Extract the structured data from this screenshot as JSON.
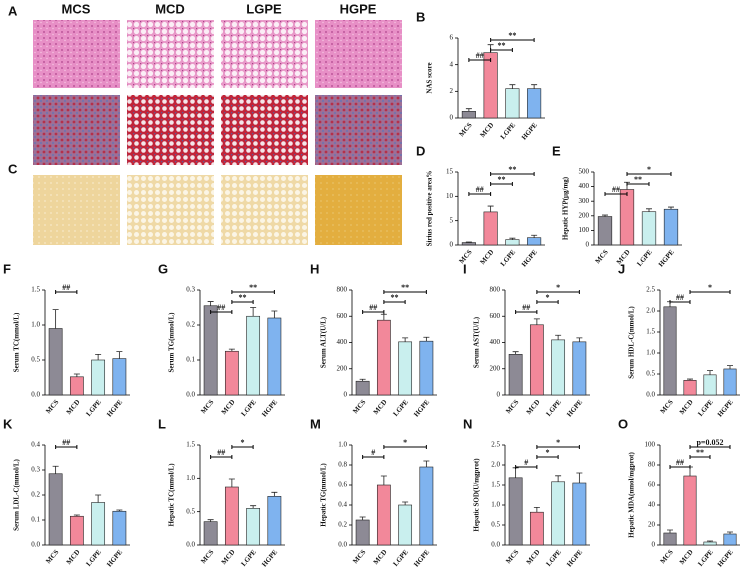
{
  "figure": {
    "panel_a": {
      "letter": "A",
      "headers": [
        "MCS",
        "MCD",
        "LGPE",
        "HGPE"
      ]
    },
    "panel_c": {
      "letter": "C"
    }
  },
  "chart_data": [
    {
      "type": "bar",
      "label": "B",
      "ylabel": "NAS score",
      "categories": [
        "MCS",
        "MCD",
        "LGPE",
        "HGPE"
      ],
      "values": [
        0.5,
        4.9,
        2.2,
        2.2
      ],
      "errors": [
        0.2,
        0.6,
        0.3,
        0.3
      ],
      "colors": [
        "#8d8a95",
        "#f2889a",
        "#c9efee",
        "#7fb3ef"
      ],
      "ylim": [
        0,
        6
      ],
      "yticks": [
        0,
        2,
        4,
        6
      ],
      "annotations": [
        {
          "text": "##",
          "from": 0,
          "to": 1
        },
        {
          "text": "**",
          "from": 1,
          "to": 2
        },
        {
          "text": "**",
          "from": 1,
          "to": 3
        }
      ]
    },
    {
      "type": "bar",
      "label": "D",
      "ylabel": "Sirius red positive area%",
      "categories": [
        "MCS",
        "MCD",
        "LGPE",
        "HGPE"
      ],
      "values": [
        0.5,
        6.8,
        1.1,
        1.5
      ],
      "errors": [
        0.1,
        1.2,
        0.3,
        0.5
      ],
      "colors": [
        "#8d8a95",
        "#f2889a",
        "#c9efee",
        "#7fb3ef"
      ],
      "ylim": [
        0,
        15
      ],
      "yticks": [
        0,
        5,
        10,
        15
      ],
      "annotations": [
        {
          "text": "##",
          "from": 0,
          "to": 1
        },
        {
          "text": "**",
          "from": 1,
          "to": 2
        },
        {
          "text": "**",
          "from": 1,
          "to": 3
        }
      ]
    },
    {
      "type": "bar",
      "label": "E",
      "ylabel": "Hepatic HYP(μg/mg)",
      "categories": [
        "MCS",
        "MCD",
        "LGPE",
        "HGPE"
      ],
      "values": [
        195,
        380,
        228,
        245
      ],
      "errors": [
        10,
        50,
        20,
        15
      ],
      "colors": [
        "#8d8a95",
        "#f2889a",
        "#c9efee",
        "#7fb3ef"
      ],
      "ylim": [
        0,
        500
      ],
      "yticks": [
        0,
        100,
        200,
        300,
        400,
        500
      ],
      "annotations": [
        {
          "text": "##",
          "from": 0,
          "to": 1
        },
        {
          "text": "**",
          "from": 1,
          "to": 2
        },
        {
          "text": "*",
          "from": 1,
          "to": 3
        }
      ]
    },
    {
      "type": "bar",
      "label": "F",
      "ylabel": "Serum TC(mmol/L)",
      "categories": [
        "MCS",
        "MCD",
        "LGPE",
        "HGPE"
      ],
      "values": [
        0.95,
        0.26,
        0.5,
        0.52
      ],
      "errors": [
        0.27,
        0.04,
        0.08,
        0.1
      ],
      "colors": [
        "#8d8a95",
        "#f2889a",
        "#c9efee",
        "#7fb3ef"
      ],
      "ylim": [
        0,
        1.5
      ],
      "yticks": [
        {
          "value": 0,
          "label": "0.0"
        },
        0.5,
        {
          "value": 1,
          "label": "1.0"
        },
        1.5
      ],
      "annotations": [
        {
          "text": "##",
          "from": 0,
          "to": 1
        }
      ]
    },
    {
      "type": "bar",
      "label": "G",
      "ylabel": "Serum TG(mmol/L)",
      "categories": [
        "MCS",
        "MCD",
        "LGPE",
        "HGPE"
      ],
      "values": [
        0.255,
        0.125,
        0.225,
        0.22
      ],
      "errors": [
        0.012,
        0.006,
        0.025,
        0.02
      ],
      "colors": [
        "#8d8a95",
        "#f2889a",
        "#c9efee",
        "#7fb3ef"
      ],
      "ylim": [
        0,
        0.3
      ],
      "yticks": [
        {
          "value": 0,
          "label": "0.0"
        },
        0.1,
        0.2,
        0.3
      ],
      "annotations": [
        {
          "text": "##",
          "from": 0,
          "to": 1
        },
        {
          "text": "**",
          "from": 1,
          "to": 2
        },
        {
          "text": "**",
          "from": 1,
          "to": 3
        }
      ]
    },
    {
      "type": "bar",
      "label": "H",
      "ylabel": "Serum ALT(U/L)",
      "categories": [
        "MCS",
        "MCD",
        "LGPE",
        "HGPE"
      ],
      "values": [
        105,
        570,
        405,
        410
      ],
      "errors": [
        15,
        45,
        30,
        30
      ],
      "colors": [
        "#8d8a95",
        "#f2889a",
        "#c9efee",
        "#7fb3ef"
      ],
      "ylim": [
        0,
        800
      ],
      "yticks": [
        0,
        200,
        400,
        600,
        800
      ],
      "annotations": [
        {
          "text": "##",
          "from": 0,
          "to": 1
        },
        {
          "text": "**",
          "from": 1,
          "to": 2
        },
        {
          "text": "**",
          "from": 1,
          "to": 3
        }
      ]
    },
    {
      "type": "bar",
      "label": "I",
      "ylabel": "Serum AST(U/L)",
      "categories": [
        "MCS",
        "MCD",
        "LGPE",
        "HGPE"
      ],
      "values": [
        310,
        535,
        420,
        405
      ],
      "errors": [
        20,
        45,
        35,
        30
      ],
      "colors": [
        "#8d8a95",
        "#f2889a",
        "#c9efee",
        "#7fb3ef"
      ],
      "ylim": [
        0,
        800
      ],
      "yticks": [
        0,
        200,
        400,
        600,
        800
      ],
      "annotations": [
        {
          "text": "##",
          "from": 0,
          "to": 1
        },
        {
          "text": "*",
          "from": 1,
          "to": 2
        },
        {
          "text": "*",
          "from": 1,
          "to": 3
        }
      ]
    },
    {
      "type": "bar",
      "label": "J",
      "ylabel": "Serum HDL-C(mmol/L)",
      "categories": [
        "MCS",
        "MCD",
        "LGPE",
        "HGPE"
      ],
      "values": [
        2.1,
        0.35,
        0.48,
        0.62
      ],
      "errors": [
        0.12,
        0.03,
        0.1,
        0.08
      ],
      "colors": [
        "#8d8a95",
        "#f2889a",
        "#c9efee",
        "#7fb3ef"
      ],
      "ylim": [
        0,
        2.5
      ],
      "yticks": [
        {
          "value": 0,
          "label": "0.0"
        },
        0.5,
        {
          "value": 1,
          "label": "1.0"
        },
        1.5,
        {
          "value": 2,
          "label": "2.0"
        },
        2.5
      ],
      "annotations": [
        {
          "text": "##",
          "from": 0,
          "to": 1
        },
        {
          "text": "*",
          "from": 1,
          "to": 3
        }
      ]
    },
    {
      "type": "bar",
      "label": "K",
      "ylabel": "Serum LDL-C(mmol/L)",
      "categories": [
        "MCS",
        "MCD",
        "LGPE",
        "HGPE"
      ],
      "values": [
        0.285,
        0.115,
        0.17,
        0.135
      ],
      "errors": [
        0.03,
        0.005,
        0.03,
        0.005
      ],
      "colors": [
        "#8d8a95",
        "#f2889a",
        "#c9efee",
        "#7fb3ef"
      ],
      "ylim": [
        0,
        0.4
      ],
      "yticks": [
        {
          "value": 0,
          "label": "0.0"
        },
        0.1,
        0.2,
        0.3,
        0.4
      ],
      "annotations": [
        {
          "text": "##",
          "from": 0,
          "to": 1
        }
      ]
    },
    {
      "type": "bar",
      "label": "L",
      "ylabel": "Hepatic TC(mmol/L)",
      "categories": [
        "MCS",
        "MCD",
        "LGPE",
        "HGPE"
      ],
      "values": [
        0.35,
        0.87,
        0.55,
        0.73
      ],
      "errors": [
        0.03,
        0.12,
        0.04,
        0.06
      ],
      "colors": [
        "#8d8a95",
        "#f2889a",
        "#c9efee",
        "#7fb3ef"
      ],
      "ylim": [
        0,
        1.5
      ],
      "yticks": [
        {
          "value": 0,
          "label": "0.0"
        },
        0.5,
        {
          "value": 1,
          "label": "1.0"
        },
        1.5
      ],
      "annotations": [
        {
          "text": "##",
          "from": 0,
          "to": 1
        },
        {
          "text": "*",
          "from": 1,
          "to": 2
        }
      ]
    },
    {
      "type": "bar",
      "label": "M",
      "ylabel": "Hepatic TG(mmol/L)",
      "categories": [
        "MCS",
        "MCD",
        "LGPE",
        "HGPE"
      ],
      "values": [
        0.25,
        0.6,
        0.4,
        0.78
      ],
      "errors": [
        0.03,
        0.09,
        0.03,
        0.06
      ],
      "colors": [
        "#8d8a95",
        "#f2889a",
        "#c9efee",
        "#7fb3ef"
      ],
      "ylim": [
        0,
        1
      ],
      "yticks": [
        {
          "value": 0,
          "label": "0.0"
        },
        0.2,
        0.4,
        0.6,
        0.8,
        {
          "value": 1,
          "label": "1.0"
        }
      ],
      "annotations": [
        {
          "text": "#",
          "from": 0,
          "to": 1
        },
        {
          "text": "*",
          "from": 1,
          "to": 3
        }
      ]
    },
    {
      "type": "bar",
      "label": "N",
      "ylabel": "Hepatic SOD(U/mgprot)",
      "categories": [
        "MCS",
        "MCD",
        "LGPE",
        "HGPE"
      ],
      "values": [
        1.68,
        0.82,
        1.58,
        1.55
      ],
      "errors": [
        0.25,
        0.12,
        0.15,
        0.25
      ],
      "colors": [
        "#8d8a95",
        "#f2889a",
        "#c9efee",
        "#7fb3ef"
      ],
      "ylim": [
        0,
        2.5
      ],
      "yticks": [
        {
          "value": 0,
          "label": "0.0"
        },
        0.5,
        {
          "value": 1,
          "label": "1.0"
        },
        1.5,
        {
          "value": 2,
          "label": "2.0"
        },
        2.5
      ],
      "annotations": [
        {
          "text": "#",
          "from": 0,
          "to": 1
        },
        {
          "text": "*",
          "from": 1,
          "to": 2
        },
        {
          "text": "*",
          "from": 1,
          "to": 3
        }
      ]
    },
    {
      "type": "bar",
      "label": "O",
      "ylabel": "Hepatic MDA(nmol/mgprot)",
      "categories": [
        "MCS",
        "MCD",
        "LGPE",
        "HGPE"
      ],
      "values": [
        12,
        69,
        3,
        11
      ],
      "errors": [
        3,
        9,
        1,
        2
      ],
      "colors": [
        "#8d8a95",
        "#f2889a",
        "#c9efee",
        "#7fb3ef"
      ],
      "ylim": [
        0,
        100
      ],
      "yticks": [
        0,
        20,
        40,
        60,
        80,
        100
      ],
      "annotations": [
        {
          "text": "##",
          "from": 0,
          "to": 1
        },
        {
          "text": "**",
          "from": 1,
          "to": 2
        },
        {
          "text": "p=0.052",
          "from": 1,
          "to": 3
        }
      ]
    }
  ]
}
